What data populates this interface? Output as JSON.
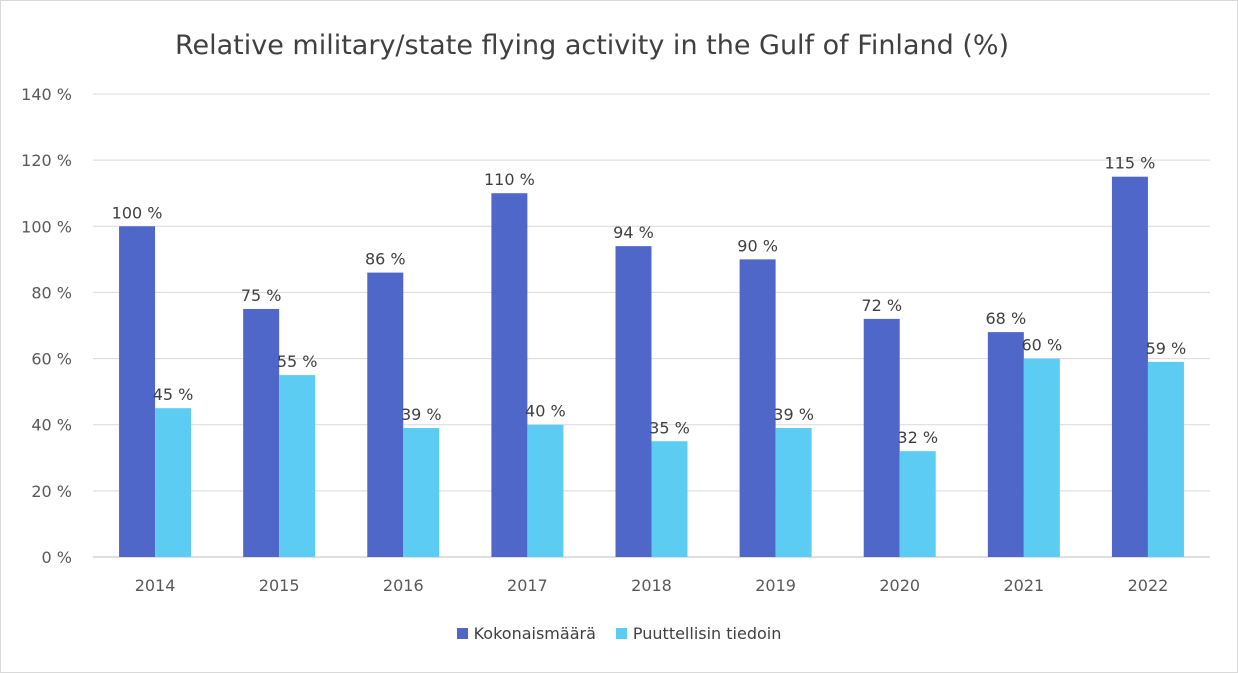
{
  "chart_data": {
    "type": "bar",
    "title": "Relative military/state flying activity in the Gulf of Finland (%)",
    "categories": [
      "2014",
      "2015",
      "2016",
      "2017",
      "2018",
      "2019",
      "2020",
      "2021",
      "2022"
    ],
    "series": [
      {
        "name": "Kokonaismäärä",
        "color": "#4F67C9",
        "values": [
          100,
          75,
          86,
          110,
          94,
          90,
          72,
          68,
          115
        ]
      },
      {
        "name": "Puuttellisin tiedoin",
        "color": "#5DCCF3",
        "values": [
          45,
          55,
          39,
          40,
          35,
          39,
          32,
          60,
          59
        ]
      }
    ],
    "ylim": [
      0,
      140
    ],
    "yticks": [
      0,
      20,
      40,
      60,
      80,
      100,
      120,
      140
    ],
    "ytick_suffix": " %",
    "data_label_suffix": " %",
    "grid": true,
    "legend_position": "bottom"
  }
}
